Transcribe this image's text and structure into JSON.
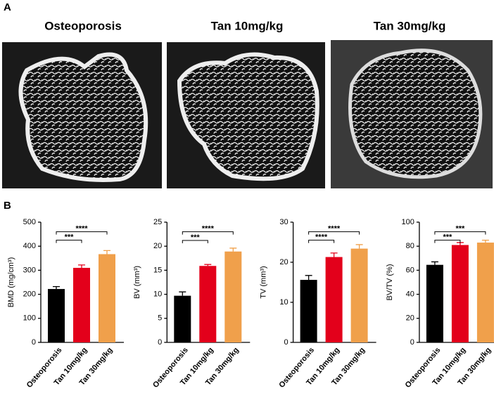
{
  "panels": {
    "a": {
      "label": "A",
      "titles": [
        "Osteoporosis",
        "Tan 10mg/kg",
        "Tan 30mg/kg"
      ]
    },
    "b": {
      "label": "B"
    }
  },
  "chart_data": [
    {
      "type": "bar",
      "y_label": "BMD (mg/cm³)",
      "categories": [
        "Osteoporosis",
        "Tan 10mg/kg",
        "Tan 30mg/kg"
      ],
      "values": [
        222,
        310,
        367
      ],
      "errors": [
        10,
        12,
        15
      ],
      "colors": [
        "#000000",
        "#e3001b",
        "#f0a04b"
      ],
      "ylim": [
        0,
        500
      ],
      "yticks": [
        0,
        100,
        200,
        300,
        400,
        500
      ],
      "annotations": [
        {
          "text": "***",
          "y": 425,
          "x": [
            "Osteoporosis",
            "Tan 10mg/kg"
          ]
        },
        {
          "text": "****",
          "y": 460,
          "x": [
            "Osteoporosis",
            "Tan 30mg/kg"
          ]
        }
      ]
    },
    {
      "type": "bar",
      "y_label": "BV (mm³)",
      "categories": [
        "Osteoporosis",
        "Tan 10mg/kg",
        "Tan 30mg/kg"
      ],
      "values": [
        9.7,
        15.9,
        18.9
      ],
      "errors": [
        0.8,
        0.3,
        0.7
      ],
      "colors": [
        "#000000",
        "#e3001b",
        "#f0a04b"
      ],
      "ylim": [
        0,
        25
      ],
      "yticks": [
        0,
        5,
        10,
        15,
        20,
        25
      ],
      "annotations": [
        {
          "text": "***",
          "y": 21.2,
          "x": [
            "Osteoporosis",
            "Tan 10mg/kg"
          ]
        },
        {
          "text": "****",
          "y": 23,
          "x": [
            "Osteoporosis",
            "Tan 30mg/kg"
          ]
        }
      ]
    },
    {
      "type": "bar",
      "y_label": "TV (mm³)",
      "categories": [
        "Osteoporosis",
        "Tan 10mg/kg",
        "Tan 30mg/kg"
      ],
      "values": [
        15.6,
        21.3,
        23.4
      ],
      "errors": [
        1.1,
        1.0,
        1.0
      ],
      "colors": [
        "#000000",
        "#e3001b",
        "#f0a04b"
      ],
      "ylim": [
        0,
        30
      ],
      "yticks": [
        0,
        10,
        20,
        30
      ],
      "annotations": [
        {
          "text": "****",
          "y": 25.5,
          "x": [
            "Osteoporosis",
            "Tan 10mg/kg"
          ]
        },
        {
          "text": "****",
          "y": 27.6,
          "x": [
            "Osteoporosis",
            "Tan 30mg/kg"
          ]
        }
      ]
    },
    {
      "type": "bar",
      "y_label": "BV/TV (%)",
      "categories": [
        "Osteoporosis",
        "Tan 10mg/kg",
        "Tan 30mg/kg"
      ],
      "values": [
        64.5,
        81,
        83
      ],
      "errors": [
        2.5,
        2,
        2
      ],
      "colors": [
        "#000000",
        "#e3001b",
        "#f0a04b"
      ],
      "ylim": [
        0,
        100
      ],
      "yticks": [
        0,
        20,
        40,
        60,
        80,
        100
      ],
      "annotations": [
        {
          "text": "***",
          "y": 85,
          "x": [
            "Osteoporosis",
            "Tan 10mg/kg"
          ]
        },
        {
          "text": "***",
          "y": 92,
          "x": [
            "Osteoporosis",
            "Tan 30mg/kg"
          ]
        }
      ]
    }
  ]
}
